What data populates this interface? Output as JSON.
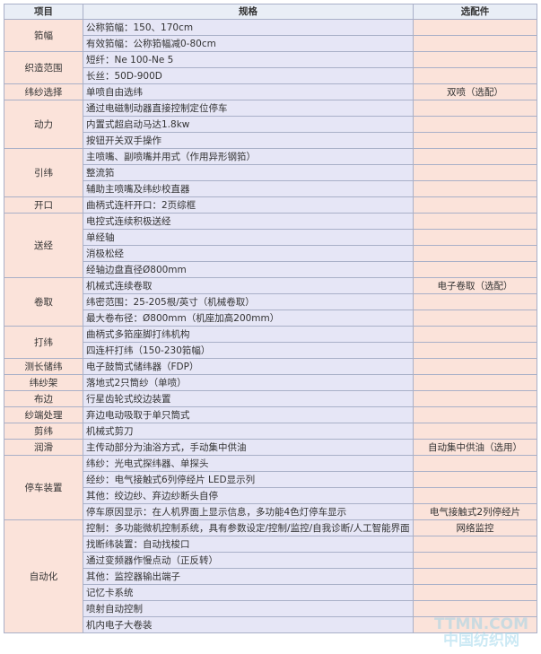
{
  "header": {
    "item": "项目",
    "spec": "规格",
    "option": "选配件"
  },
  "groups": [
    {
      "item": "筘幅",
      "rows": [
        {
          "spec": "公称筘幅：150、170cm"
        },
        {
          "spec": "有效筘幅：公称筘幅减0-80cm"
        }
      ]
    },
    {
      "item": "织造范围",
      "rows": [
        {
          "spec": "短纤：Ne 100-Ne 5"
        },
        {
          "spec": "长丝：50D-900D"
        }
      ]
    },
    {
      "item": "纬纱选择",
      "rows": [
        {
          "spec": "单喷自由选纬",
          "option": "双喷（选配）"
        }
      ]
    },
    {
      "item": "动力",
      "rows": [
        {
          "spec": "通过电磁制动器直接控制定位停车"
        },
        {
          "spec": "内置式超启动马达1.8kw"
        },
        {
          "spec": "按钮开关双手操作"
        }
      ]
    },
    {
      "item": "引纬",
      "rows": [
        {
          "spec": "主喷嘴、副喷嘴并用式（作用异形钢筘）"
        },
        {
          "spec": "整流筘"
        },
        {
          "spec": "辅助主喷嘴及纬纱校直器"
        }
      ]
    },
    {
      "item": "开口",
      "rows": [
        {
          "spec": "曲柄式连杆开口：2页综框"
        }
      ]
    },
    {
      "item": "送经",
      "rows": [
        {
          "spec": "电控式连续积极送经"
        },
        {
          "spec": "单经轴"
        },
        {
          "spec": "消极松经"
        },
        {
          "spec": "经轴边盘直径Ø800mm"
        }
      ]
    },
    {
      "item": "卷取",
      "rows": [
        {
          "spec": "机械式连续卷取",
          "option": "电子卷取（选配）"
        },
        {
          "spec": "纬密范围：25-205根/英寸（机械卷取）"
        },
        {
          "spec": "最大卷布径：Ø800mm（机座加高200mm）"
        }
      ]
    },
    {
      "item": "打纬",
      "rows": [
        {
          "spec": "曲柄式多筘座脚打纬机构"
        },
        {
          "spec": "四连杆打纬（150-230筘幅）"
        }
      ]
    },
    {
      "item": "测长储纬",
      "rows": [
        {
          "spec": "电子鼓筒式储纬器（FDP）"
        }
      ]
    },
    {
      "item": "纬纱架",
      "rows": [
        {
          "spec": "落地式2只筒纱（单喷）"
        }
      ]
    },
    {
      "item": "布边",
      "rows": [
        {
          "spec": "行星齿轮式绞边装置"
        }
      ]
    },
    {
      "item": "纱端处理",
      "rows": [
        {
          "spec": "弃边电动吸取于单只筒式"
        }
      ]
    },
    {
      "item": "剪纬",
      "rows": [
        {
          "spec": "机械式剪刀"
        }
      ]
    },
    {
      "item": "润滑",
      "rows": [
        {
          "spec": "主传动部分为油浴方式，手动集中供油",
          "option": "自动集中供油（选用）"
        }
      ]
    },
    {
      "item": "停车装置",
      "rows": [
        {
          "spec": "纬纱：光电式探纬器、单探头"
        },
        {
          "spec": "经纱：电气接触式6列停经片 LED显示列"
        },
        {
          "spec": "其他：绞边纱、弃边纱断头自停"
        },
        {
          "spec": "停车原因显示：在人机界面上显示信息，多功能4色灯停车显示",
          "option": "电气接触式2列停经片"
        }
      ]
    },
    {
      "item": "自动化",
      "rows": [
        {
          "spec": "控制：多功能微机控制系统，具有参数设定/控制/监控/自我诊断/人工智能界面",
          "option": "网络监控"
        },
        {
          "spec": "找断纬装置：自动找梭口"
        },
        {
          "spec": "通过变频器作慢点动（正反转）"
        },
        {
          "spec": "其他：监控器输出端子"
        },
        {
          "spec": "记忆卡系统"
        },
        {
          "spec": "喷射自动控制"
        },
        {
          "spec": "机内电子大卷装"
        }
      ]
    }
  ],
  "watermark": {
    "site": "TTMN.COM",
    "name": "中国纺织网"
  }
}
